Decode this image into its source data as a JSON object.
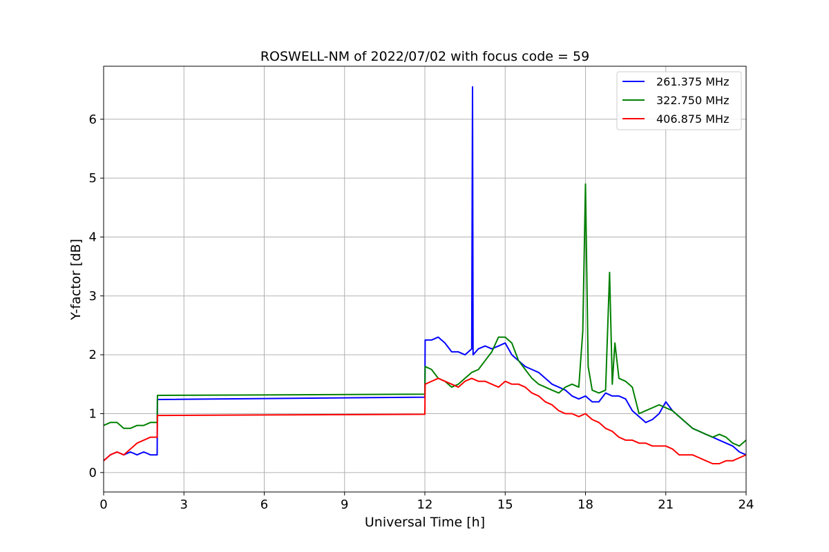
{
  "chart_data": {
    "type": "line",
    "title": "ROSWELL-NM of 2022/07/02 with focus code = 59",
    "xlabel": "Universal Time [h]",
    "ylabel": "Y-factor [dB]",
    "xlim": [
      0,
      24
    ],
    "ylim": [
      -0.33,
      6.9
    ],
    "xticks": [
      0,
      3,
      6,
      9,
      12,
      15,
      18,
      21,
      24
    ],
    "yticks": [
      0,
      1,
      2,
      3,
      4,
      5,
      6
    ],
    "grid": true,
    "legend_position": "top-right",
    "series": [
      {
        "name": "261.375 MHz",
        "color": "#0000ff",
        "x": [
          0.0,
          0.25,
          0.5,
          0.75,
          1.0,
          1.25,
          1.5,
          1.75,
          2.0,
          2.01,
          12.0,
          12.01,
          12.25,
          12.5,
          12.75,
          13.0,
          13.25,
          13.5,
          13.75,
          13.78,
          13.8,
          14.0,
          14.25,
          14.5,
          14.75,
          15.0,
          15.25,
          15.5,
          15.75,
          16.0,
          16.25,
          16.5,
          16.75,
          17.0,
          17.25,
          17.5,
          17.75,
          18.0,
          18.25,
          18.5,
          18.75,
          19.0,
          19.25,
          19.5,
          19.75,
          20.0,
          20.25,
          20.5,
          20.75,
          21.0,
          21.25,
          21.5,
          21.75,
          22.0,
          22.25,
          22.5,
          22.75,
          23.0,
          23.25,
          23.5,
          23.75,
          24.0
        ],
        "y": [
          0.2,
          0.3,
          0.35,
          0.3,
          0.35,
          0.3,
          0.35,
          0.3,
          0.3,
          1.24,
          1.28,
          2.25,
          2.25,
          2.3,
          2.2,
          2.05,
          2.05,
          2.0,
          2.1,
          6.55,
          2.0,
          2.1,
          2.15,
          2.1,
          2.15,
          2.2,
          2.0,
          1.9,
          1.8,
          1.75,
          1.7,
          1.6,
          1.5,
          1.45,
          1.4,
          1.3,
          1.25,
          1.3,
          1.2,
          1.2,
          1.35,
          1.3,
          1.3,
          1.25,
          1.05,
          0.95,
          0.85,
          0.9,
          1.0,
          1.2,
          1.05,
          0.95,
          0.85,
          0.75,
          0.7,
          0.65,
          0.6,
          0.55,
          0.5,
          0.45,
          0.35,
          0.3
        ]
      },
      {
        "name": "322.750 MHz",
        "color": "#008000",
        "x": [
          0.0,
          0.25,
          0.5,
          0.75,
          1.0,
          1.25,
          1.5,
          1.75,
          2.0,
          2.01,
          12.0,
          12.01,
          12.25,
          12.5,
          12.75,
          13.0,
          13.25,
          13.5,
          13.75,
          14.0,
          14.25,
          14.5,
          14.75,
          15.0,
          15.25,
          15.5,
          15.75,
          16.0,
          16.25,
          16.5,
          16.75,
          17.0,
          17.25,
          17.5,
          17.75,
          17.9,
          18.0,
          18.1,
          18.25,
          18.5,
          18.75,
          18.9,
          19.0,
          19.1,
          19.25,
          19.5,
          19.75,
          20.0,
          20.25,
          20.5,
          20.75,
          21.0,
          21.25,
          21.5,
          21.75,
          22.0,
          22.25,
          22.5,
          22.75,
          23.0,
          23.25,
          23.5,
          23.75,
          24.0
        ],
        "y": [
          0.8,
          0.85,
          0.85,
          0.75,
          0.75,
          0.8,
          0.8,
          0.85,
          0.85,
          1.31,
          1.33,
          1.8,
          1.75,
          1.6,
          1.55,
          1.45,
          1.5,
          1.6,
          1.7,
          1.75,
          1.9,
          2.05,
          2.3,
          2.3,
          2.2,
          1.9,
          1.75,
          1.6,
          1.5,
          1.45,
          1.4,
          1.35,
          1.45,
          1.5,
          1.45,
          2.4,
          4.9,
          1.8,
          1.4,
          1.35,
          1.4,
          3.4,
          1.5,
          2.2,
          1.6,
          1.55,
          1.45,
          1.0,
          1.05,
          1.1,
          1.15,
          1.1,
          1.05,
          0.95,
          0.85,
          0.75,
          0.7,
          0.65,
          0.6,
          0.65,
          0.6,
          0.5,
          0.45,
          0.55
        ]
      },
      {
        "name": "406.875 MHz",
        "color": "#ff0000",
        "x": [
          0.0,
          0.25,
          0.5,
          0.75,
          1.0,
          1.25,
          1.5,
          1.75,
          2.0,
          2.01,
          12.0,
          12.01,
          12.25,
          12.5,
          12.75,
          13.0,
          13.25,
          13.5,
          13.75,
          14.0,
          14.25,
          14.5,
          14.75,
          15.0,
          15.25,
          15.5,
          15.75,
          16.0,
          16.25,
          16.5,
          16.75,
          17.0,
          17.25,
          17.5,
          17.75,
          18.0,
          18.25,
          18.5,
          18.75,
          19.0,
          19.25,
          19.5,
          19.75,
          20.0,
          20.25,
          20.5,
          20.75,
          21.0,
          21.25,
          21.5,
          21.75,
          22.0,
          22.25,
          22.5,
          22.75,
          23.0,
          23.25,
          23.5,
          23.75,
          24.0
        ],
        "y": [
          0.2,
          0.3,
          0.35,
          0.3,
          0.4,
          0.5,
          0.55,
          0.6,
          0.6,
          0.97,
          0.99,
          1.5,
          1.55,
          1.6,
          1.55,
          1.5,
          1.45,
          1.55,
          1.6,
          1.55,
          1.55,
          1.5,
          1.45,
          1.55,
          1.5,
          1.5,
          1.45,
          1.35,
          1.3,
          1.2,
          1.15,
          1.05,
          1.0,
          1.0,
          0.95,
          1.0,
          0.9,
          0.85,
          0.75,
          0.7,
          0.6,
          0.55,
          0.55,
          0.5,
          0.5,
          0.45,
          0.45,
          0.45,
          0.4,
          0.3,
          0.3,
          0.3,
          0.25,
          0.2,
          0.15,
          0.15,
          0.2,
          0.2,
          0.25,
          0.3
        ]
      }
    ]
  }
}
